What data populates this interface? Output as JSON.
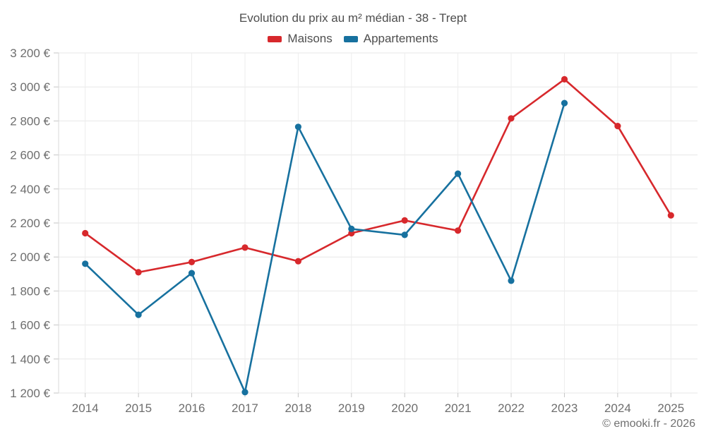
{
  "chart_data": {
    "type": "line",
    "title": "Evolution du prix au m² médian - 38 - Trept",
    "categories": [
      "2014",
      "2015",
      "2016",
      "2017",
      "2018",
      "2019",
      "2020",
      "2021",
      "2022",
      "2023",
      "2024",
      "2025"
    ],
    "series": [
      {
        "name": "Maisons",
        "color": "#d7282c",
        "values": [
          2140,
          1910,
          1970,
          2055,
          1975,
          2140,
          2215,
          2155,
          2815,
          3045,
          2770,
          2245
        ]
      },
      {
        "name": "Appartements",
        "color": "#17719f",
        "values": [
          1960,
          1660,
          1905,
          1205,
          2765,
          2165,
          2130,
          2490,
          1860,
          2905,
          null,
          null
        ]
      }
    ],
    "xlabel": "",
    "ylabel": "",
    "ylim": [
      1200,
      3200
    ],
    "y_tick_step": 200,
    "y_tick_suffix": " €",
    "grid": true,
    "legend_position": "top",
    "copyright": "© emooki.fr - 2026"
  }
}
